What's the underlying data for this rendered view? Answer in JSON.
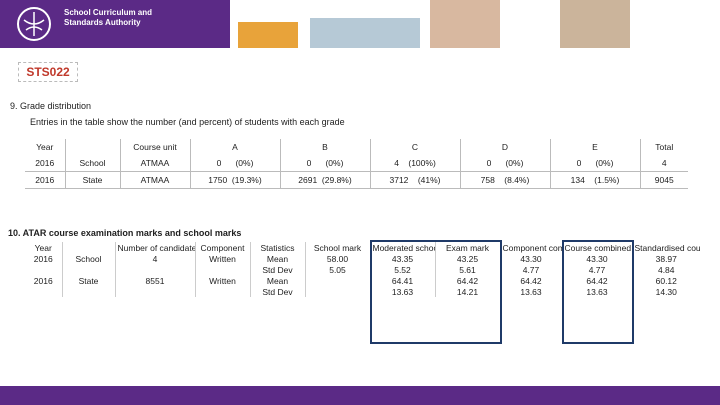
{
  "header": {
    "organisation": "School Curriculum and Standards Authority"
  },
  "code": "STS022",
  "section9": {
    "title": "9.   Grade distribution",
    "subtitle": "Entries in the table show the number (and percent) of students with each grade",
    "table": {
      "columns": [
        "Year",
        null,
        "Course unit",
        "A",
        "B",
        "C",
        "D",
        "E",
        "Total"
      ],
      "rows": [
        [
          "2016",
          "School",
          "ATMAA",
          "0      (0%)",
          "0      (0%)",
          "4    (100%)",
          "0      (0%)",
          "0      (0%)",
          "4"
        ],
        [
          "2016",
          "State",
          "ATMAA",
          "1750  (19.3%)",
          "2691  (29.8%)",
          "3712    (41%)",
          "758    (8.4%)",
          "134    (1.5%)",
          "9045"
        ]
      ]
    }
  },
  "section10": {
    "title": "10.  ATAR course examination marks and school marks",
    "table": {
      "columns": [
        "Year",
        null,
        "Number of candidates *",
        "Component",
        "Statistics",
        "School mark",
        "Moderated school mark",
        "Exam mark",
        "Component combined mark",
        "Course combined score",
        "Standardised course combined score"
      ],
      "rows": [
        [
          "2016",
          "School",
          "4",
          "Written",
          "Mean",
          "58.00",
          "43.35",
          "43.25",
          "43.30",
          "43.30",
          "38.97"
        ],
        [
          null,
          null,
          null,
          null,
          "Std Dev",
          "5.05",
          "5.52",
          "5.61",
          "4.77",
          "4.77",
          "4.84"
        ],
        [
          "2016",
          "State",
          "8551",
          "Written",
          "Mean",
          null,
          "64.41",
          "64.42",
          "64.42",
          "64.42",
          "60.12"
        ],
        [
          null,
          null,
          null,
          null,
          "Std Dev",
          null,
          "13.63",
          "14.21",
          "13.63",
          "13.63",
          "14.30"
        ]
      ]
    }
  }
}
